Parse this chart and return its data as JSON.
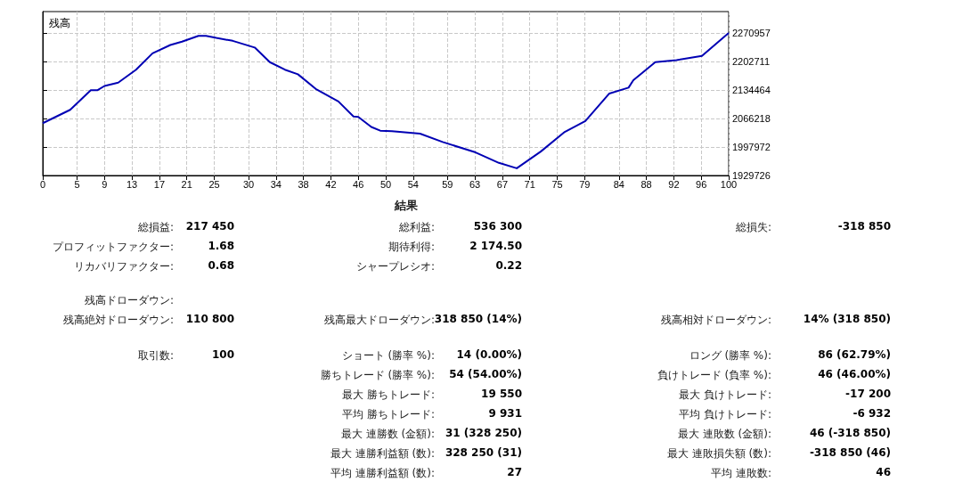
{
  "chart_data": [
    {
      "type": "line",
      "title": "残高",
      "x": [
        0,
        4,
        7,
        8,
        9,
        11,
        13.6,
        16,
        18.6,
        20.3,
        22.7,
        23.8,
        25.3,
        27.7,
        30.9,
        33.1,
        35.3,
        37.2,
        39.8,
        43.1,
        45.3,
        46,
        47.9,
        49.2,
        50.9,
        55,
        58.3,
        63.1,
        66.5,
        69.1,
        72.6,
        76.1,
        79.1,
        82.6,
        85.4,
        86.1,
        89.3,
        92.4,
        96.1,
        100
      ],
      "series": [
        {
          "color": "#0000b4",
          "values": [
            2055000,
            2087000,
            2134000,
            2134000,
            2144000,
            2152000,
            2183000,
            2222000,
            2242000,
            2250000,
            2264000,
            2264000,
            2259000,
            2252000,
            2236000,
            2201000,
            2183000,
            2172000,
            2137000,
            2107000,
            2071000,
            2070000,
            2046000,
            2037000,
            2036000,
            2030000,
            2010000,
            1985000,
            1960000,
            1947000,
            1987000,
            2034000,
            2060000,
            2126000,
            2140000,
            2158000,
            2201000,
            2206000,
            2216000,
            2271000
          ]
        }
      ],
      "xlim": [
        0,
        100
      ],
      "xticks": [
        0,
        5,
        9,
        13,
        17,
        21,
        25,
        30,
        34,
        38,
        42,
        46,
        50,
        54,
        59,
        63,
        67,
        71,
        75,
        79,
        84,
        88,
        92,
        96,
        100
      ],
      "ylim": [
        1929726,
        2322000
      ],
      "yticks": [
        1929726,
        1997972,
        2066218,
        2134464,
        2202711,
        2270957
      ],
      "grid": true
    },
    {
      "type": "other",
      "title": "結果",
      "annotations": [
        "総損益:",
        "217 450",
        "総利益:",
        "536 300",
        "総損失:",
        "-318 850",
        "プロフィットファクター:",
        "1.68",
        "期待利得:",
        "2 174.50",
        "リカバリファクター:",
        "0.68",
        "シャープレシオ:",
        "0.22",
        "残高ドローダウン:",
        "残高絶対ドローダウン:",
        "110 800",
        "残高最大ドローダウン:",
        "318 850 (14%)",
        "残高相対ドローダウン:",
        "14% (318 850)",
        "取引数:",
        "100",
        "ショート (勝率 %):",
        "14 (0.00%)",
        "ロング (勝率 %):",
        "86 (62.79%)",
        "勝ちトレード (勝率 %):",
        "54 (54.00%)",
        "負けトレード (負率 %):",
        "46 (46.00%)",
        "最大 勝ちトレード:",
        "19 550",
        "最大 負けトレード:",
        "-17 200",
        "平均 勝ちトレード:",
        "9 931",
        "平均 負けトレード:",
        "-6 932",
        "最大 連勝数 (金額):",
        "31 (328 250)",
        "最大 連敗数 (金額):",
        "46 (-318 850)",
        "最大 連勝利益額 (数):",
        "328 250 (31)",
        "最大 連敗損失額 (数):",
        "-318 850 (46)",
        "平均 連勝利益額 (数):",
        "27",
        "平均 連敗数:",
        "46"
      ]
    }
  ]
}
